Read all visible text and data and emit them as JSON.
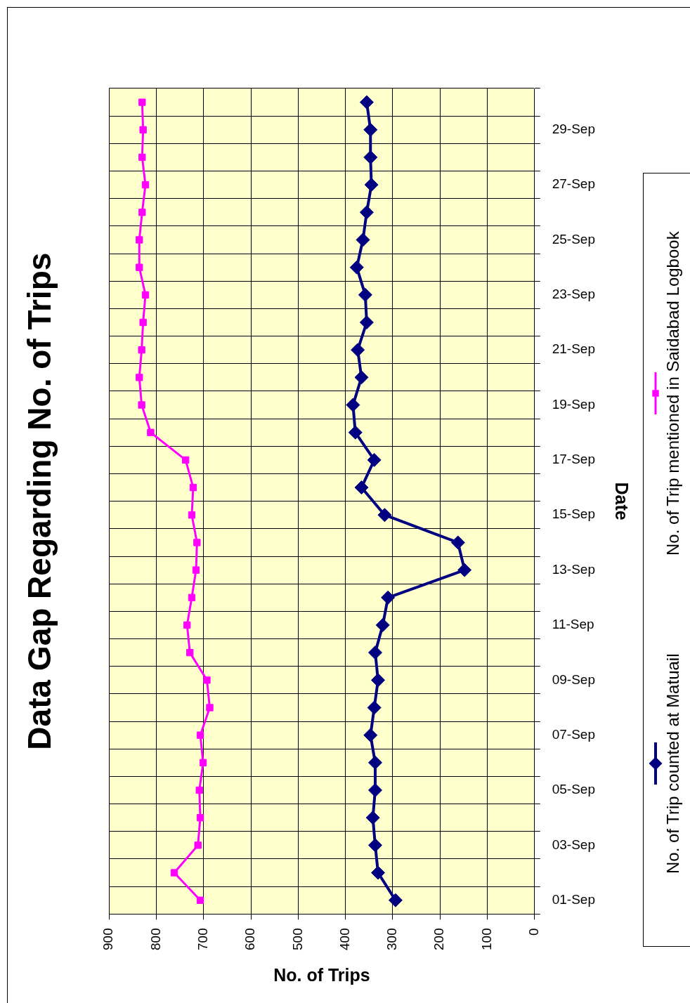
{
  "chart_data": {
    "type": "line",
    "orientation": "horizontal",
    "title": "Data Gap Regarding No. of Trips",
    "xlabel": "No. of Trips",
    "ylabel": "Date",
    "categories": [
      null,
      "29-Sep",
      null,
      "27-Sep",
      null,
      "25-Sep",
      null,
      "23-Sep",
      null,
      "21-Sep",
      null,
      "19-Sep",
      null,
      "17-Sep",
      null,
      "15-Sep",
      null,
      "13-Sep",
      null,
      "11-Sep",
      null,
      "09-Sep",
      null,
      "07-Sep",
      null,
      "05-Sep",
      null,
      "03-Sep",
      null,
      "01-Sep"
    ],
    "series": [
      {
        "name": "No. of Trip counted at Matuail",
        "color": "#000080",
        "marker": "diamond",
        "values": [
          355,
          347,
          347,
          345,
          355,
          363,
          376,
          358,
          355,
          374,
          366,
          384,
          379,
          339,
          366,
          317,
          162,
          148,
          310,
          321,
          337,
          331,
          339,
          347,
          337,
          337,
          342,
          337,
          331,
          294
        ]
      },
      {
        "name": "No. of Trip mentioned in Saidabad Logbook",
        "color": "#ff00ff",
        "marker": "square",
        "values": [
          830,
          828,
          830,
          823,
          830,
          836,
          836,
          823,
          828,
          831,
          836,
          831,
          812,
          738,
          722,
          725,
          714,
          716,
          725,
          735,
          729,
          693,
          687,
          707,
          701,
          709,
          707,
          712,
          762,
          707
        ]
      }
    ],
    "xlim": [
      900,
      0
    ],
    "xticks": [
      0,
      100,
      200,
      300,
      400,
      500,
      600,
      700,
      800,
      900
    ],
    "grid": true,
    "legend": "right"
  }
}
